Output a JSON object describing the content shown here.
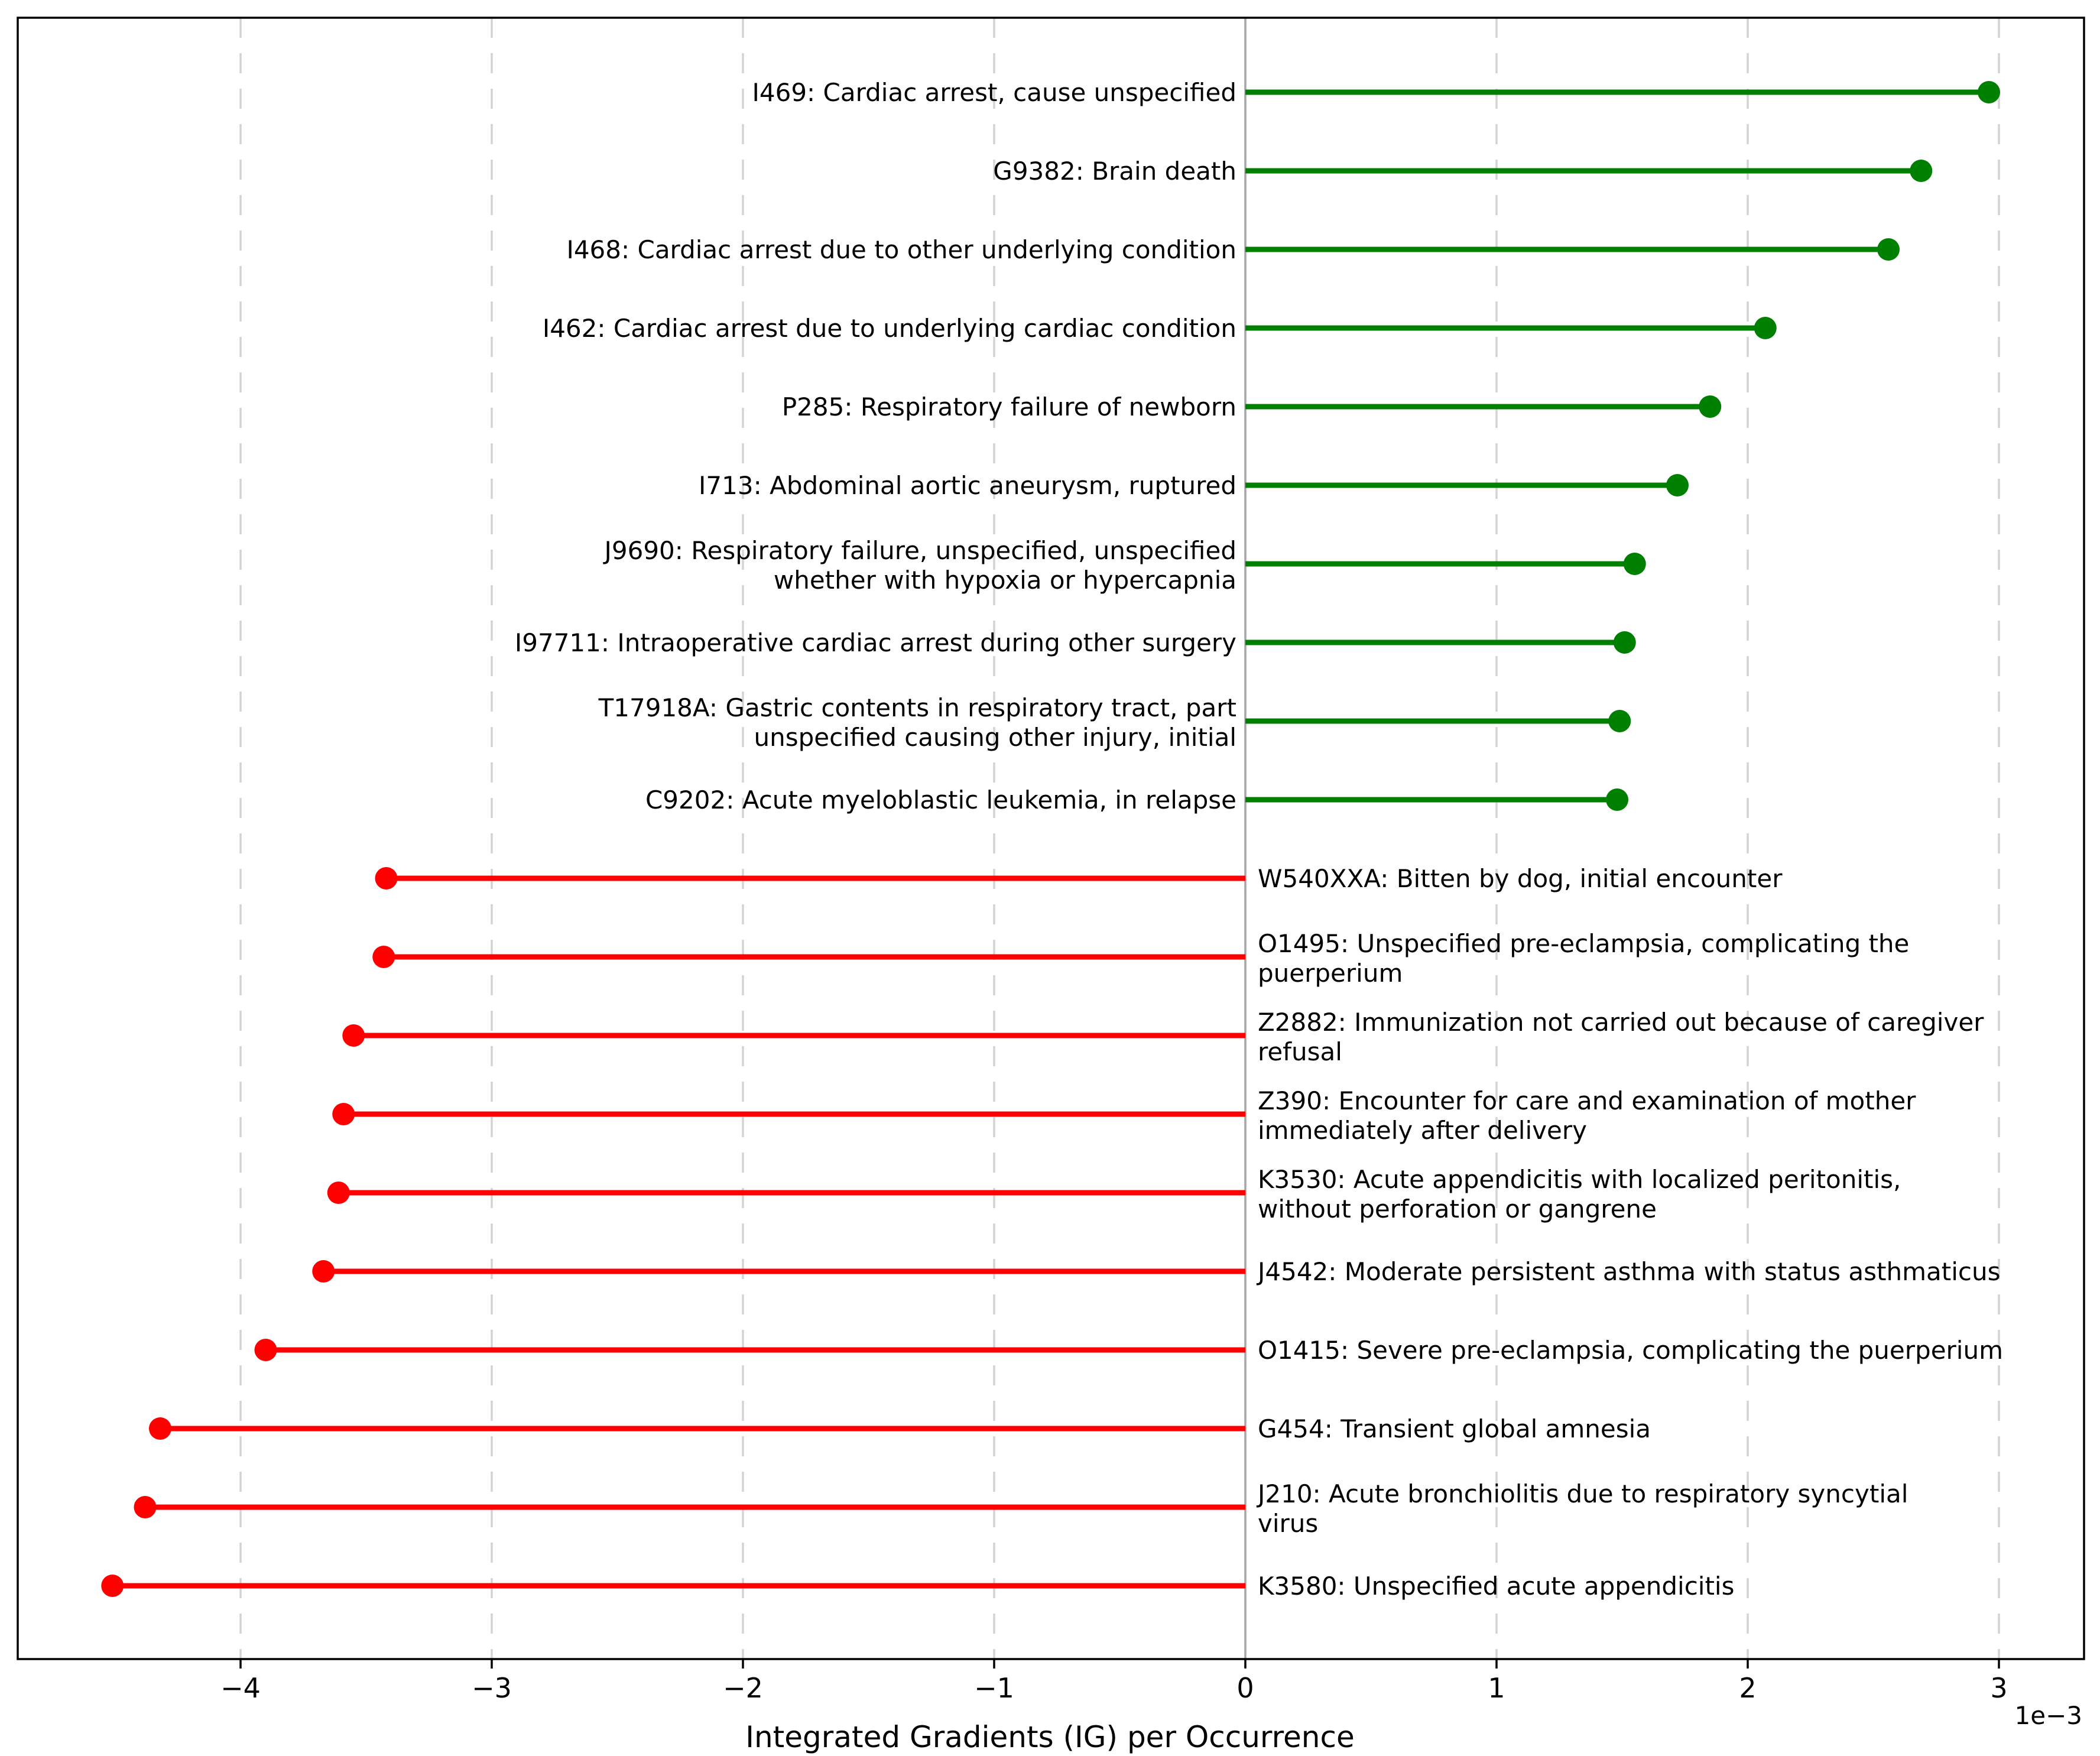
{
  "figure": {
    "offset_label": "1e−3"
  },
  "colors": {
    "positive": "#008000",
    "negative": "#ff0000",
    "grid": "#d4d4d4",
    "zero_line": "#a6a6a6",
    "frame": "#000000",
    "text": "#000000",
    "background": "#ffffff"
  },
  "chart_data": {
    "type": "bar",
    "subtype": "lollipop",
    "orientation": "horizontal",
    "title": "",
    "xlabel": "Integrated Gradients (IG) per Occurrence",
    "ylabel": "",
    "unit_scale": "1e-3",
    "x_ticks": [
      -4,
      -3,
      -2,
      -1,
      0,
      1,
      2,
      3
    ],
    "xlim": [
      -4.89,
      3.34
    ],
    "grid": "vertical-dashed",
    "zero_line": true,
    "legend": "none",
    "items": [
      {
        "code": "I469",
        "value_e3": 2.96,
        "label": "I469: Cardiac arrest, cause unspecified",
        "lines": [
          "I469: Cardiac arrest, cause unspecified"
        ]
      },
      {
        "code": "G9382",
        "value_e3": 2.69,
        "label": "G9382: Brain death",
        "lines": [
          "G9382: Brain death"
        ]
      },
      {
        "code": "I468",
        "value_e3": 2.56,
        "label": "I468: Cardiac arrest due to other underlying condition",
        "lines": [
          "I468: Cardiac arrest due to other underlying condition"
        ]
      },
      {
        "code": "I462",
        "value_e3": 2.07,
        "label": "I462: Cardiac arrest due to underlying cardiac condition",
        "lines": [
          "I462: Cardiac arrest due to underlying cardiac condition"
        ]
      },
      {
        "code": "P285",
        "value_e3": 1.85,
        "label": "P285: Respiratory failure of newborn",
        "lines": [
          "P285: Respiratory failure of newborn"
        ]
      },
      {
        "code": "I713",
        "value_e3": 1.72,
        "label": "I713: Abdominal aortic aneurysm, ruptured",
        "lines": [
          "I713: Abdominal aortic aneurysm, ruptured"
        ]
      },
      {
        "code": "J9690",
        "value_e3": 1.55,
        "label": "J9690: Respiratory failure, unspecified, unspecified whether with hypoxia or hypercapnia",
        "lines": [
          "J9690: Respiratory failure, unspecified, unspecified",
          "whether with hypoxia or hypercapnia"
        ]
      },
      {
        "code": "I97711",
        "value_e3": 1.51,
        "label": "I97711: Intraoperative cardiac arrest during other surgery",
        "lines": [
          "I97711: Intraoperative cardiac arrest during other surgery"
        ]
      },
      {
        "code": "T17918A",
        "value_e3": 1.49,
        "label": "T17918A: Gastric contents in respiratory tract, part unspecified causing other injury, initial",
        "lines": [
          "T17918A: Gastric contents in respiratory tract, part",
          "unspecified causing other injury, initial"
        ]
      },
      {
        "code": "C9202",
        "value_e3": 1.48,
        "label": "C9202: Acute myeloblastic leukemia, in relapse",
        "lines": [
          "C9202: Acute myeloblastic leukemia, in relapse"
        ]
      },
      {
        "code": "W540XXA",
        "value_e3": -3.42,
        "label": "W540XXA: Bitten by dog, initial encounter",
        "lines": [
          "W540XXA: Bitten by dog, initial encounter"
        ]
      },
      {
        "code": "O1495",
        "value_e3": -3.43,
        "label": "O1495: Unspecified pre-eclampsia, complicating the puerperium",
        "lines": [
          "O1495: Unspecified pre-eclampsia, complicating the",
          "puerperium"
        ]
      },
      {
        "code": "Z2882",
        "value_e3": -3.55,
        "label": "Z2882: Immunization not carried out because of caregiver refusal",
        "lines": [
          "Z2882: Immunization not carried out because of caregiver",
          "refusal"
        ]
      },
      {
        "code": "Z390",
        "value_e3": -3.59,
        "label": "Z390: Encounter for care and examination of mother immediately after delivery",
        "lines": [
          "Z390: Encounter for care and examination of mother",
          "immediately after delivery"
        ]
      },
      {
        "code": "K3530",
        "value_e3": -3.61,
        "label": "K3530: Acute appendicitis with localized peritonitis, without perforation or gangrene",
        "lines": [
          "K3530: Acute appendicitis with localized peritonitis,",
          "without perforation or gangrene"
        ]
      },
      {
        "code": "J4542",
        "value_e3": -3.67,
        "label": "J4542: Moderate persistent asthma with status asthmaticus",
        "lines": [
          "J4542: Moderate persistent asthma with status asthmaticus"
        ]
      },
      {
        "code": "O1415",
        "value_e3": -3.9,
        "label": "O1415: Severe pre-eclampsia, complicating the puerperium",
        "lines": [
          "O1415: Severe pre-eclampsia, complicating the puerperium"
        ]
      },
      {
        "code": "G454",
        "value_e3": -4.32,
        "label": "G454: Transient global amnesia",
        "lines": [
          "G454: Transient global amnesia"
        ]
      },
      {
        "code": "J210",
        "value_e3": -4.38,
        "label": "J210: Acute bronchiolitis due to respiratory syncytial virus",
        "lines": [
          "J210: Acute bronchiolitis due to respiratory syncytial",
          "virus"
        ]
      },
      {
        "code": "K3580",
        "value_e3": -4.51,
        "label": "K3580: Unspecified acute appendicitis",
        "lines": [
          "K3580: Unspecified acute appendicitis"
        ]
      }
    ]
  }
}
